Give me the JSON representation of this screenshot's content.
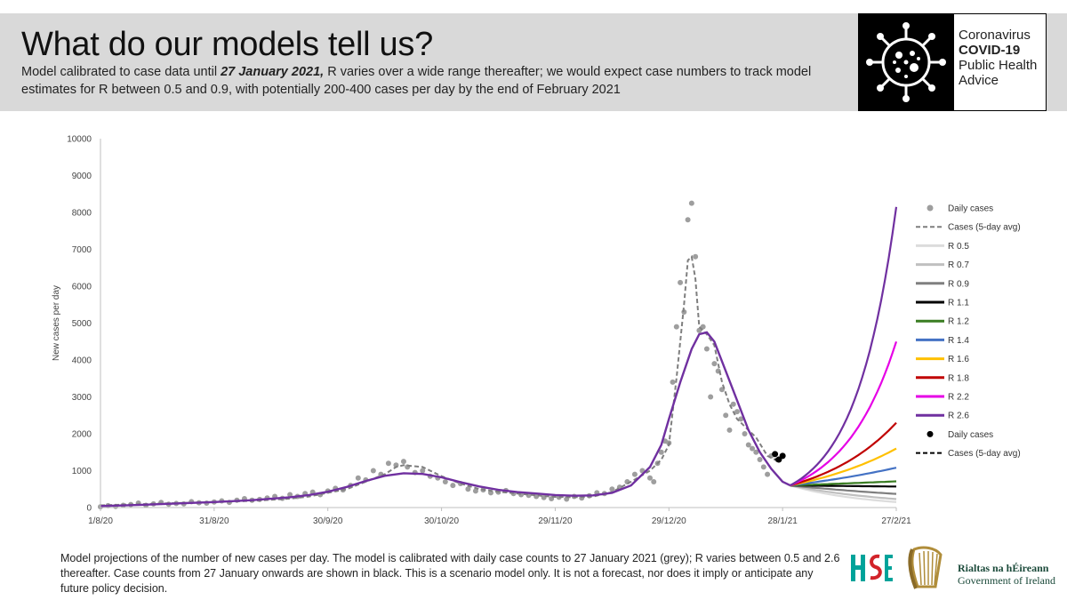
{
  "header": {
    "title": "What do our models tell us?",
    "subtitle_pre": "Model calibrated to case data until ",
    "subtitle_em": "27 January 2021,",
    "subtitle_post": " R varies over a wide range thereafter; we would expect case numbers to track model estimates for R between 0.5 and 0.9, with potentially 200-400 cases per day by the end of February 2021"
  },
  "badge": {
    "line1": "Coronavirus",
    "line2": "COVID-19",
    "line3": "Public Health",
    "line4": "Advice",
    "icon": "virus-icon"
  },
  "footnote": "Model projections of the number of new cases per day. The model is calibrated with daily case counts to 27 January 2021 (grey); R varies between 0.5 and 2.6 thereafter. Case counts from 27 January onwards are shown in black. This is a scenario model only. It is not a forecast, nor does it imply or anticipate any future policy decision.",
  "government": {
    "line1": "Rialtas na hÉireann",
    "line2": "Government of Ireland",
    "hse_icon": "hse-logo-icon",
    "harp_icon": "harp-emblem-icon"
  },
  "chart_data": {
    "type": "line",
    "title": "",
    "xlabel": "",
    "ylabel": "New cases per day",
    "x_ticks": [
      "1/8/20",
      "31/8/20",
      "30/9/20",
      "30/10/20",
      "29/11/20",
      "29/12/20",
      "28/1/21",
      "27/2/21"
    ],
    "x_tick_days": [
      0,
      30,
      60,
      90,
      120,
      150,
      180,
      210
    ],
    "x_range_days": [
      0,
      210
    ],
    "y_ticks": [
      0,
      1000,
      2000,
      3000,
      4000,
      5000,
      6000,
      7000,
      8000,
      9000,
      10000
    ],
    "ylim": [
      0,
      10000
    ],
    "grid": false,
    "legend_position": "right",
    "legend": [
      {
        "label": "Daily cases",
        "kind": "dot",
        "color": "#9e9e9e"
      },
      {
        "label": "Cases (5-day avg)",
        "kind": "dash",
        "color": "#7f7f7f"
      },
      {
        "label": "R 0.5",
        "kind": "line",
        "color": "#dcdcdc"
      },
      {
        "label": "R 0.7",
        "kind": "line",
        "color": "#c0c0c0"
      },
      {
        "label": "R 0.9",
        "kind": "line",
        "color": "#7f7f7f"
      },
      {
        "label": "R 1.1",
        "kind": "line",
        "color": "#000000"
      },
      {
        "label": "R 1.2",
        "kind": "line",
        "color": "#3a7d22"
      },
      {
        "label": "R 1.4",
        "kind": "line",
        "color": "#4472c4"
      },
      {
        "label": "R 1.6",
        "kind": "line",
        "color": "#ffc000"
      },
      {
        "label": "R 1.8",
        "kind": "line",
        "color": "#c00000"
      },
      {
        "label": "R 2.2",
        "kind": "line",
        "color": "#e600e6"
      },
      {
        "label": "R 2.6",
        "kind": "line",
        "color": "#7030a0"
      },
      {
        "label": "Daily cases",
        "kind": "dot",
        "color": "#000000"
      },
      {
        "label": "Cases (5-day avg)",
        "kind": "dash",
        "color": "#000000"
      }
    ],
    "model_fit": {
      "name": "model",
      "color": "#7030a0",
      "points": [
        [
          0,
          40
        ],
        [
          10,
          70
        ],
        [
          20,
          110
        ],
        [
          30,
          150
        ],
        [
          40,
          200
        ],
        [
          50,
          280
        ],
        [
          55,
          340
        ],
        [
          60,
          430
        ],
        [
          65,
          560
        ],
        [
          70,
          720
        ],
        [
          75,
          860
        ],
        [
          80,
          930
        ],
        [
          85,
          910
        ],
        [
          90,
          820
        ],
        [
          95,
          690
        ],
        [
          100,
          570
        ],
        [
          105,
          480
        ],
        [
          110,
          420
        ],
        [
          115,
          380
        ],
        [
          120,
          340
        ],
        [
          125,
          320
        ],
        [
          130,
          330
        ],
        [
          135,
          400
        ],
        [
          140,
          600
        ],
        [
          145,
          1100
        ],
        [
          148,
          1700
        ],
        [
          150,
          2400
        ],
        [
          153,
          3400
        ],
        [
          156,
          4300
        ],
        [
          158,
          4700
        ],
        [
          160,
          4750
        ],
        [
          162,
          4500
        ],
        [
          165,
          3700
        ],
        [
          168,
          2900
        ],
        [
          171,
          2100
        ],
        [
          174,
          1500
        ],
        [
          177,
          1050
        ],
        [
          180,
          700
        ],
        [
          182,
          600
        ]
      ]
    },
    "projections": [
      {
        "name": "R 0.5",
        "color": "#dcdcdc",
        "end": 150
      },
      {
        "name": "R 0.7",
        "color": "#c0c0c0",
        "end": 230
      },
      {
        "name": "R 0.9",
        "color": "#7f7f7f",
        "end": 370
      },
      {
        "name": "R 1.1",
        "color": "#000000",
        "end": 570
      },
      {
        "name": "R 1.2",
        "color": "#3a7d22",
        "end": 710
      },
      {
        "name": "R 1.4",
        "color": "#4472c4",
        "end": 1080
      },
      {
        "name": "R 1.6",
        "color": "#ffc000",
        "end": 1600
      },
      {
        "name": "R 1.8",
        "color": "#c00000",
        "end": 2300
      },
      {
        "name": "R 2.2",
        "color": "#e600e6",
        "end": 4500
      },
      {
        "name": "R 2.6",
        "color": "#7030a0",
        "end": 8150
      }
    ],
    "projection_start": [
      182,
      600
    ],
    "projection_end_day": 210,
    "avg_grey": [
      [
        0,
        60
      ],
      [
        10,
        90
      ],
      [
        20,
        120
      ],
      [
        30,
        150
      ],
      [
        40,
        180
      ],
      [
        50,
        240
      ],
      [
        55,
        300
      ],
      [
        60,
        400
      ],
      [
        65,
        500
      ],
      [
        70,
        700
      ],
      [
        75,
        900
      ],
      [
        78,
        1100
      ],
      [
        80,
        1150
      ],
      [
        85,
        1100
      ],
      [
        90,
        850
      ],
      [
        95,
        650
      ],
      [
        100,
        500
      ],
      [
        105,
        430
      ],
      [
        110,
        380
      ],
      [
        115,
        330
      ],
      [
        120,
        290
      ],
      [
        125,
        280
      ],
      [
        130,
        300
      ],
      [
        135,
        420
      ],
      [
        140,
        700
      ],
      [
        145,
        1000
      ],
      [
        148,
        1300
      ],
      [
        150,
        1700
      ],
      [
        152,
        3500
      ],
      [
        154,
        5500
      ],
      [
        155,
        6700
      ],
      [
        156,
        6800
      ],
      [
        157,
        6200
      ],
      [
        158,
        4900
      ],
      [
        160,
        4700
      ],
      [
        162,
        4400
      ],
      [
        164,
        3400
      ],
      [
        166,
        2800
      ],
      [
        168,
        2400
      ],
      [
        171,
        2100
      ],
      [
        173,
        1900
      ],
      [
        176,
        1400
      ],
      [
        178,
        1300
      ],
      [
        179,
        1200
      ]
    ],
    "avg_black": [
      [
        178,
        1300
      ],
      [
        180,
        1420
      ]
    ],
    "daily_grey": [
      [
        0,
        20
      ],
      [
        2,
        50
      ],
      [
        4,
        30
      ],
      [
        6,
        60
      ],
      [
        8,
        80
      ],
      [
        10,
        120
      ],
      [
        12,
        60
      ],
      [
        14,
        100
      ],
      [
        16,
        140
      ],
      [
        18,
        90
      ],
      [
        20,
        110
      ],
      [
        22,
        100
      ],
      [
        24,
        160
      ],
      [
        26,
        130
      ],
      [
        28,
        120
      ],
      [
        30,
        150
      ],
      [
        32,
        180
      ],
      [
        34,
        140
      ],
      [
        36,
        200
      ],
      [
        38,
        240
      ],
      [
        40,
        200
      ],
      [
        42,
        220
      ],
      [
        44,
        260
      ],
      [
        46,
        300
      ],
      [
        48,
        250
      ],
      [
        50,
        350
      ],
      [
        52,
        300
      ],
      [
        54,
        380
      ],
      [
        56,
        420
      ],
      [
        58,
        350
      ],
      [
        60,
        450
      ],
      [
        62,
        520
      ],
      [
        64,
        480
      ],
      [
        66,
        600
      ],
      [
        68,
        800
      ],
      [
        70,
        750
      ],
      [
        72,
        1000
      ],
      [
        74,
        900
      ],
      [
        76,
        1200
      ],
      [
        78,
        1150
      ],
      [
        80,
        1250
      ],
      [
        81,
        1100
      ],
      [
        83,
        950
      ],
      [
        85,
        1000
      ],
      [
        87,
        850
      ],
      [
        89,
        800
      ],
      [
        91,
        700
      ],
      [
        93,
        600
      ],
      [
        95,
        650
      ],
      [
        97,
        500
      ],
      [
        99,
        450
      ],
      [
        101,
        480
      ],
      [
        103,
        400
      ],
      [
        105,
        420
      ],
      [
        107,
        460
      ],
      [
        109,
        380
      ],
      [
        111,
        350
      ],
      [
        113,
        330
      ],
      [
        115,
        300
      ],
      [
        117,
        270
      ],
      [
        119,
        240
      ],
      [
        121,
        280
      ],
      [
        123,
        230
      ],
      [
        125,
        300
      ],
      [
        127,
        260
      ],
      [
        129,
        320
      ],
      [
        131,
        400
      ],
      [
        133,
        380
      ],
      [
        135,
        500
      ],
      [
        137,
        550
      ],
      [
        139,
        700
      ],
      [
        141,
        900
      ],
      [
        143,
        1000
      ],
      [
        145,
        800
      ],
      [
        146,
        700
      ],
      [
        147,
        1200
      ],
      [
        148,
        1500
      ],
      [
        149,
        1800
      ],
      [
        150,
        1750
      ],
      [
        151,
        3400
      ],
      [
        152,
        4900
      ],
      [
        153,
        6100
      ],
      [
        154,
        5300
      ],
      [
        155,
        7800
      ],
      [
        156,
        8250
      ],
      [
        157,
        6800
      ],
      [
        158,
        4800
      ],
      [
        159,
        4900
      ],
      [
        160,
        4300
      ],
      [
        161,
        3000
      ],
      [
        162,
        3900
      ],
      [
        163,
        3700
      ],
      [
        164,
        3200
      ],
      [
        165,
        2500
      ],
      [
        166,
        2100
      ],
      [
        167,
        2800
      ],
      [
        168,
        2600
      ],
      [
        169,
        2400
      ],
      [
        170,
        2000
      ],
      [
        171,
        1700
      ],
      [
        172,
        1600
      ],
      [
        173,
        1500
      ],
      [
        174,
        1300
      ],
      [
        175,
        1100
      ],
      [
        176,
        900
      ],
      [
        177,
        1400
      ]
    ],
    "daily_black": [
      [
        178,
        1450
      ],
      [
        179,
        1300
      ],
      [
        180,
        1400
      ]
    ]
  }
}
